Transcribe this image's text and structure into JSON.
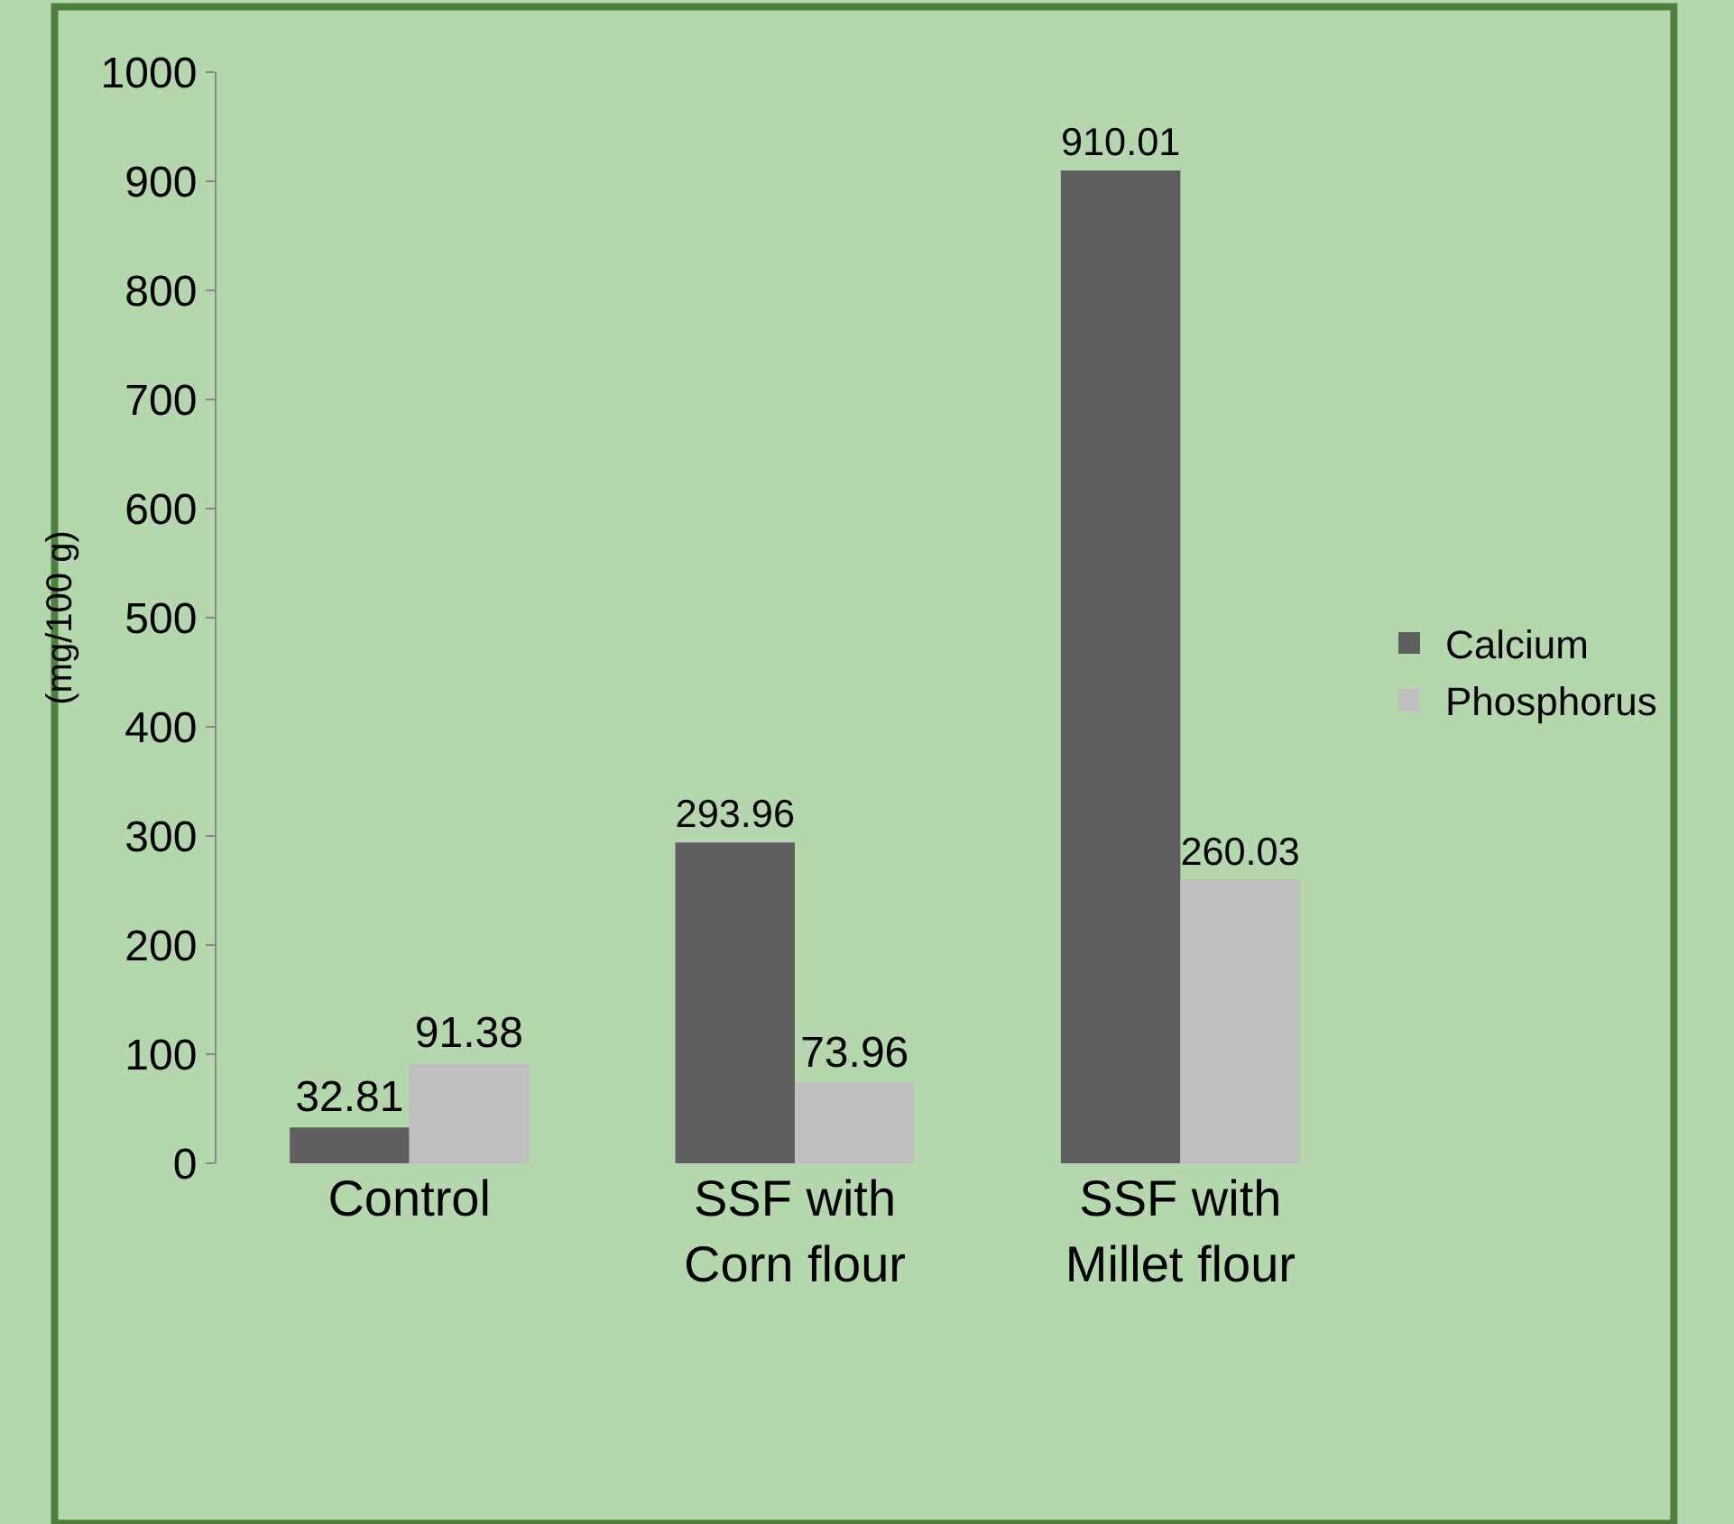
{
  "chart_data": {
    "type": "bar",
    "ylabel": "(mg/100 g)",
    "categories": [
      "Control",
      "SSF with\nCorn flour",
      "SSF with\nMillet flour"
    ],
    "series": [
      {
        "name": "Calcium",
        "color": "#5f5f5f",
        "values": [
          32.81,
          293.96,
          910.01
        ]
      },
      {
        "name": "Phosphorus",
        "color": "#bfbfbf",
        "values": [
          91.38,
          73.96,
          260.03
        ]
      }
    ],
    "ylim": [
      0,
      1000
    ],
    "yticks": [
      0,
      100,
      200,
      300,
      400,
      500,
      600,
      700,
      800,
      900,
      1000
    ],
    "grid": false,
    "legend": "right",
    "data_labels": true
  }
}
